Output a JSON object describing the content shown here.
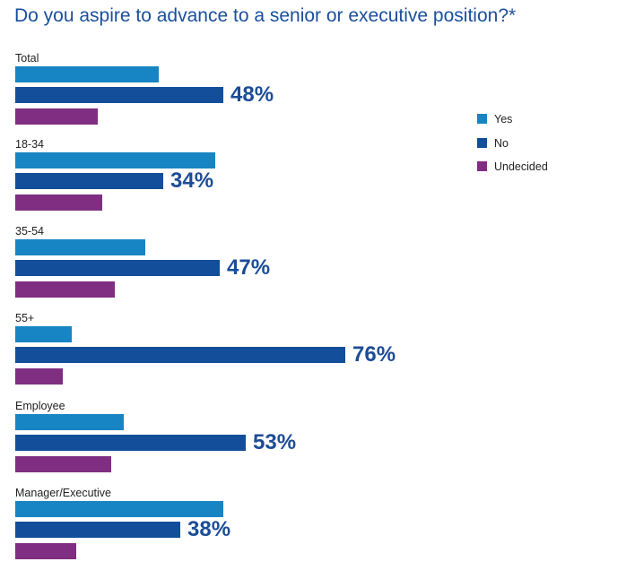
{
  "title": "Do you aspire to advance to a senior or executive position?*",
  "colors": {
    "Yes": "#1785c3",
    "No": "#124e99",
    "Undecided": "#7f2e82"
  },
  "chart_data": {
    "type": "bar",
    "orientation": "horizontal",
    "title": "Do you aspire to advance to a senior or executive position?*",
    "categories": [
      "Total",
      "18-34",
      "35-54",
      "55+",
      "Employee",
      "Manager/Executive"
    ],
    "series": [
      {
        "name": "Yes",
        "values": [
          33,
          46,
          30,
          13,
          25,
          48
        ]
      },
      {
        "name": "No",
        "values": [
          48,
          34,
          47,
          76,
          53,
          38
        ]
      },
      {
        "name": "Undecided",
        "values": [
          19,
          20,
          23,
          11,
          22,
          14
        ]
      }
    ],
    "data_labels": [
      "48%",
      "34%",
      "47%",
      "76%",
      "53%",
      "38%"
    ],
    "legend": {
      "position": "right",
      "entries": [
        "Yes",
        "No",
        "Undecided"
      ]
    },
    "xlim": [
      0,
      100
    ]
  }
}
